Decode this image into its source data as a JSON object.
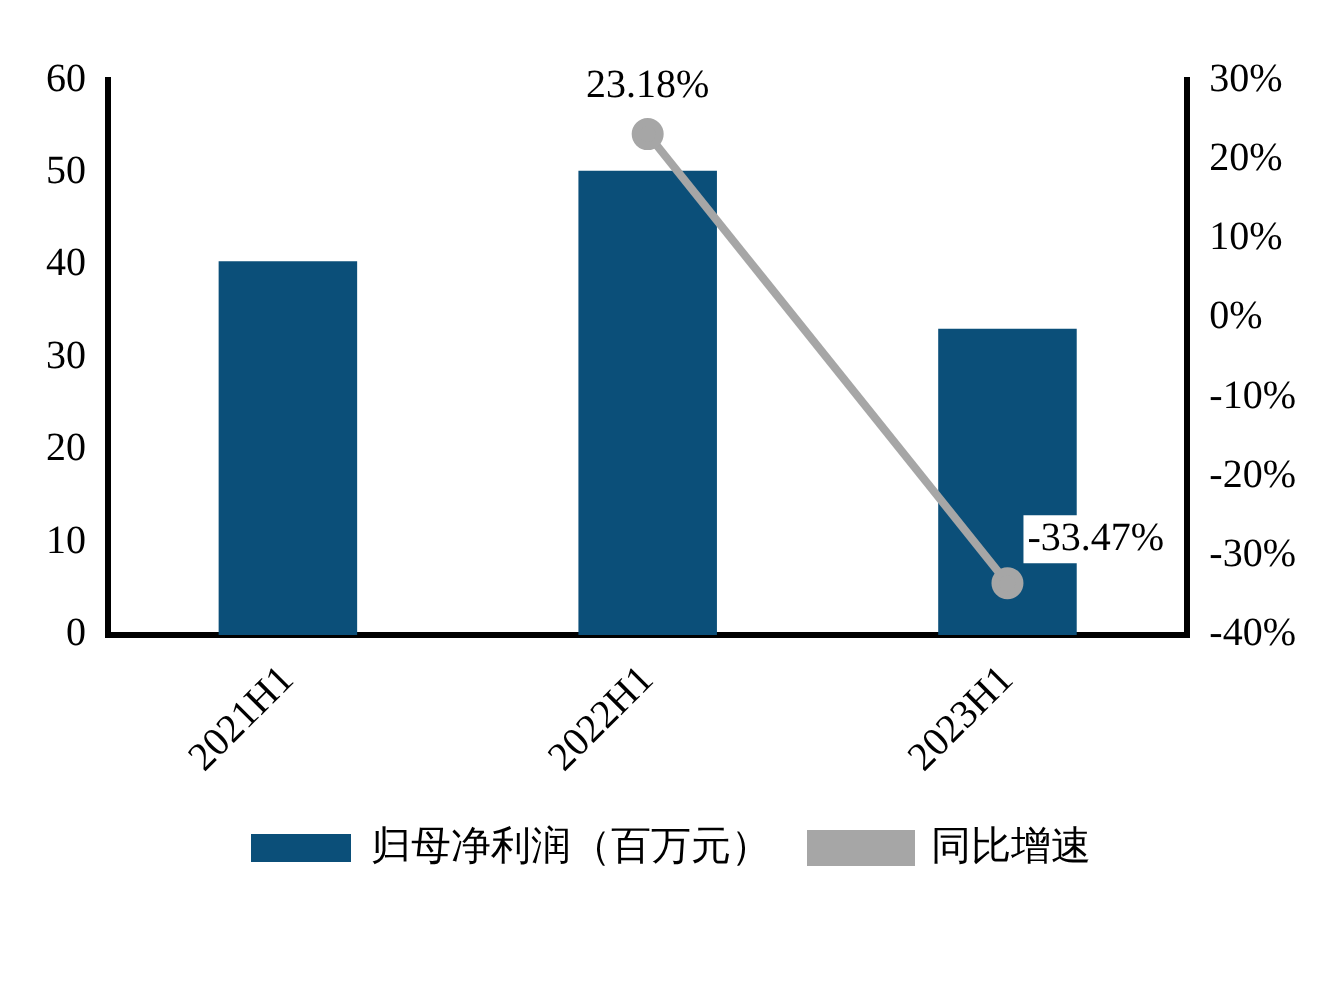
{
  "chart_data": {
    "type": "bar",
    "categories": [
      "2021H1",
      "2022H1",
      "2023H1"
    ],
    "series": [
      {
        "name": "归母净利润（百万元）",
        "color": "#0b4f79",
        "values": [
          40.4,
          50.2,
          33.1
        ]
      },
      {
        "name": "同比增速",
        "type": "line",
        "axis": "y2",
        "color": "#a6a6a6",
        "marker": "circle",
        "values": [
          null,
          23.18,
          -33.47
        ],
        "value_labels": [
          null,
          "23.18%",
          "-33.47%"
        ]
      }
    ],
    "ylim": [
      0,
      60
    ],
    "yticks": [
      0,
      10,
      20,
      30,
      40,
      50,
      60
    ],
    "y2lim": [
      -40,
      30
    ],
    "y2ticks": [
      {
        "value": -40,
        "label": "-40%"
      },
      {
        "value": -30,
        "label": "-30%"
      },
      {
        "value": -20,
        "label": "-20%"
      },
      {
        "value": -10,
        "label": "-10%"
      },
      {
        "value": 0,
        "label": "0%"
      },
      {
        "value": 10,
        "label": "10%"
      },
      {
        "value": 20,
        "label": "20%"
      },
      {
        "value": 30,
        "label": "30%"
      }
    ],
    "grid": false,
    "legend": "bottom"
  }
}
